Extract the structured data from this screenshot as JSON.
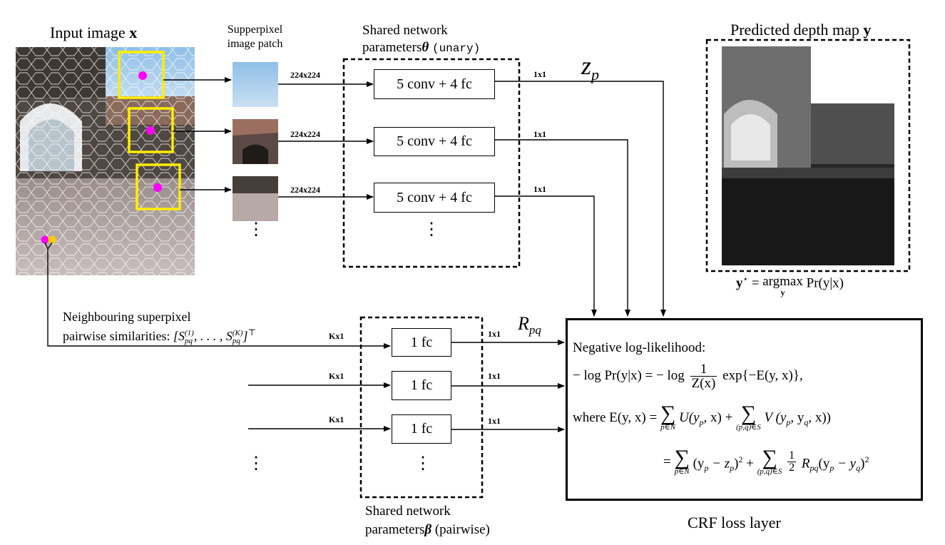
{
  "input_image": {
    "title": "Input image",
    "symbol": "x"
  },
  "patch_label": {
    "line1": "Supperpixel",
    "line2": "image patch"
  },
  "unary_group": {
    "line1": "Shared network",
    "line2_text": "parameters",
    "line2_symbol": "θ",
    "line2_suffix": "(unary)"
  },
  "unary_boxes": [
    "5 conv  + 4 fc",
    "5 conv  + 4 fc",
    "5 conv  + 4 fc"
  ],
  "size_labels": {
    "patch": "224x224",
    "unary_out": "1x1",
    "pair_in": "Kx1",
    "pair_out": "1x1"
  },
  "z_label": {
    "main": "z",
    "sub": "p"
  },
  "r_label": {
    "main": "R",
    "sub": "pq"
  },
  "depth_map": {
    "title": "Predicted depth map",
    "symbol": "y"
  },
  "argmax": {
    "lhs": "y",
    "star": "⋆",
    "eq": "=",
    "op": "argmax",
    "sub": "y",
    "rhs": "Pr(y|x)"
  },
  "pairwise_input": {
    "line1": "Neighbouring superpixel",
    "line2": "pairwise similarities:",
    "vector": "[S",
    "sup1": "(1)",
    "sub1": "pq",
    "mid": ", . . . , S",
    "supK": "(K)",
    "subK": "pq",
    "end": "]",
    "transpose": "⊤"
  },
  "pairwise_boxes": [
    "1 fc",
    "1 fc",
    "1 fc"
  ],
  "pairwise_group": {
    "line1": "Shared network",
    "line2_text": "parameters",
    "line2_symbol": "β",
    "line2_suffix": "(pairwise)"
  },
  "crf": {
    "heading": "Negative log-likelihood:",
    "line1_lhs": "− log Pr(y|x) = − log",
    "line1_num": "1",
    "line1_den": "Z(x)",
    "line1_rhs": "exp{−E(y, x)},",
    "line2_lhs": "where E(y, x) =",
    "sum_N": "p∈N",
    "sum_S": "(p,q)∈S",
    "sigma": "∑",
    "line2_t1": "U(y",
    "line2_t1b": "p",
    "line2_t1c": ", x) +",
    "line2_t2": "V (y",
    "line2_t2b": "p",
    "line2_t2c": ", y",
    "line2_t2d": "q",
    "line2_t2e": ", x))",
    "line3_eq": "=",
    "line3_t1": "(y",
    "line3_t1b": "p",
    "line3_t1c": " − z",
    "line3_t1d": "p",
    "line3_t1e": ")",
    "sq": "2",
    "plus": "+",
    "half_num": "1",
    "half_den": "2",
    "line3_t2": "R",
    "line3_t2b": "pq",
    "line3_t2c": "(y",
    "line3_t2d": "p",
    "line3_t2e": " − y",
    "line3_t2f": "q",
    "line3_t2g": ")"
  },
  "crf_caption": "CRF loss layer",
  "ellipsis": "⋮",
  "colors": {
    "highlight": "#ffee00",
    "superpixel_dot": "#ff00ff",
    "pair_dot_2": "#ffcc00",
    "sky": "#a9cdea"
  }
}
